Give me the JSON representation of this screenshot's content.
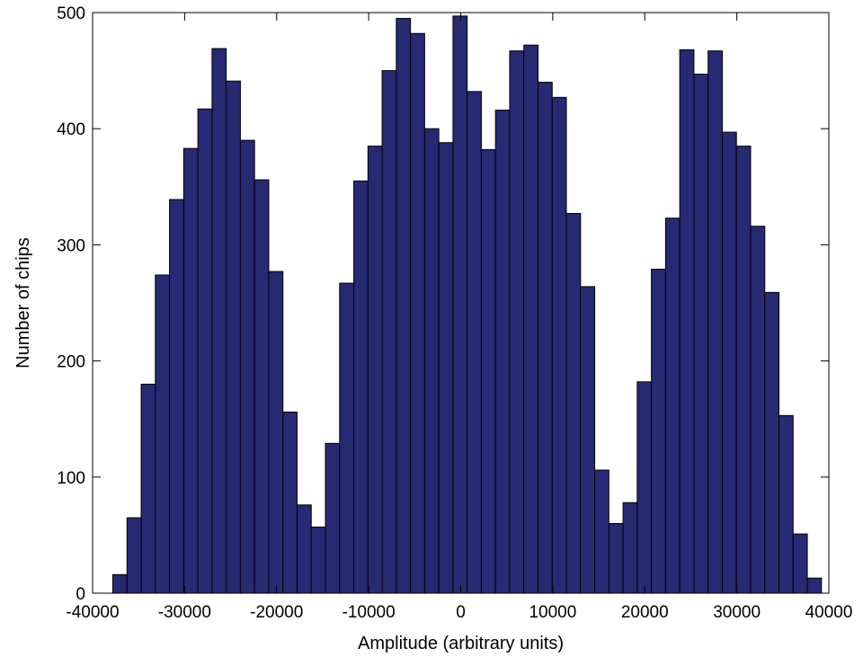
{
  "chart_data": {
    "type": "bar",
    "title": "",
    "xlabel": "Amplitude (arbitrary units)",
    "ylabel": "Number of chips",
    "xlim": [
      -40000,
      40000
    ],
    "ylim": [
      0,
      500
    ],
    "x_ticks": [
      "-40000",
      "-30000",
      "-20000",
      "-10000",
      "0",
      "10000",
      "20000",
      "30000",
      "40000"
    ],
    "y_ticks": [
      "0",
      "100",
      "200",
      "300",
      "400",
      "500"
    ],
    "x_tick_values": [
      -40000,
      -30000,
      -20000,
      -10000,
      0,
      10000,
      20000,
      30000,
      40000
    ],
    "y_tick_values": [
      0,
      100,
      200,
      300,
      400,
      500
    ],
    "grid": false,
    "bar_color": "#262a73",
    "bar_edge_color": "#000000",
    "bin_start": -37800,
    "bin_width": 1540,
    "values": [
      16,
      65,
      180,
      274,
      339,
      383,
      417,
      469,
      441,
      390,
      356,
      277,
      156,
      76,
      57,
      129,
      267,
      355,
      385,
      450,
      495,
      482,
      400,
      388,
      497,
      432,
      382,
      416,
      467,
      472,
      440,
      427,
      327,
      264,
      106,
      60,
      78,
      182,
      279,
      323,
      468,
      447,
      467,
      397,
      385,
      316,
      259,
      153,
      51,
      13
    ]
  }
}
